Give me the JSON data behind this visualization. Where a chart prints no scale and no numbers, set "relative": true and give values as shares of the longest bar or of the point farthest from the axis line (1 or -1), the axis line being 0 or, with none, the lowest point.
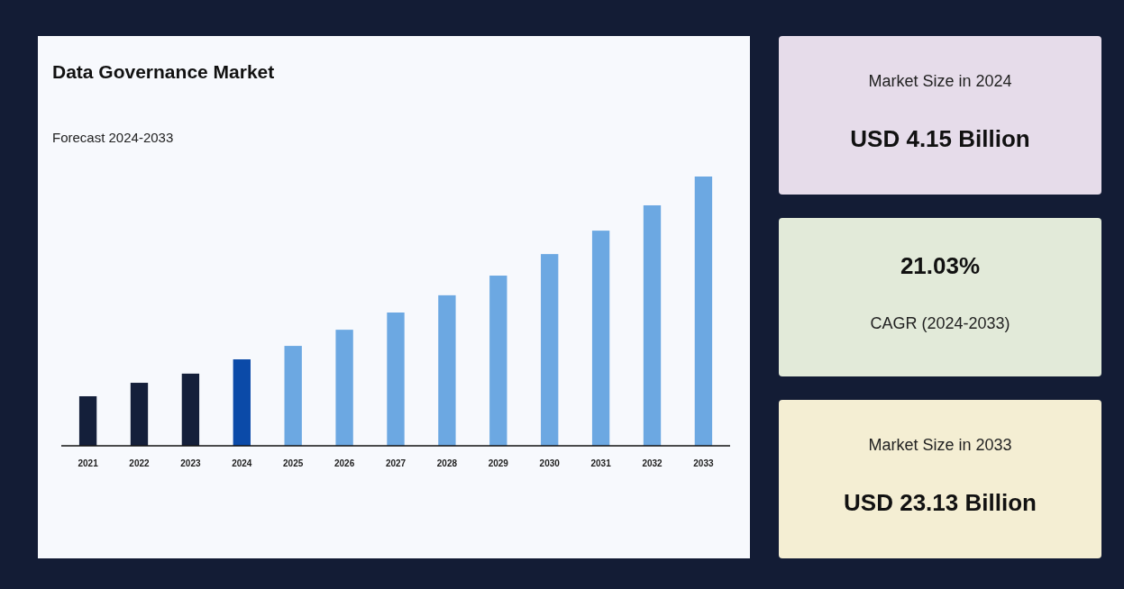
{
  "chart_data": [
    {
      "type": "bar",
      "title": "Data Governance Market",
      "subtitle": "Forecast 2024-2033",
      "relative": true,
      "categories": [
        "2021",
        "2022",
        "2023",
        "2024",
        "2025",
        "2026",
        "2027",
        "2028",
        "2029",
        "2030",
        "2031",
        "2032",
        "2033"
      ],
      "values": [
        0.184,
        0.234,
        0.268,
        0.321,
        0.371,
        0.431,
        0.495,
        0.559,
        0.632,
        0.712,
        0.799,
        0.893,
        1
      ],
      "colors": [
        "#141f3a",
        "#141f3a",
        "#141f3a",
        "#0b4aa8",
        "#6ca8e2",
        "#6ca8e2",
        "#6ca8e2",
        "#6ca8e2",
        "#6ca8e2",
        "#6ca8e2",
        "#6ca8e2",
        "#6ca8e2",
        "#6ca8e2"
      ]
    },
    {
      "type": "other",
      "title": "USD 4.15 Billion",
      "subtitle": "Market Size in 2024"
    },
    {
      "type": "other",
      "title": "21.03%",
      "subtitle": "CAGR (2024-2033)"
    },
    {
      "type": "other",
      "title": "USD 23.13 Billion",
      "subtitle": "Market Size in 2033"
    }
  ]
}
